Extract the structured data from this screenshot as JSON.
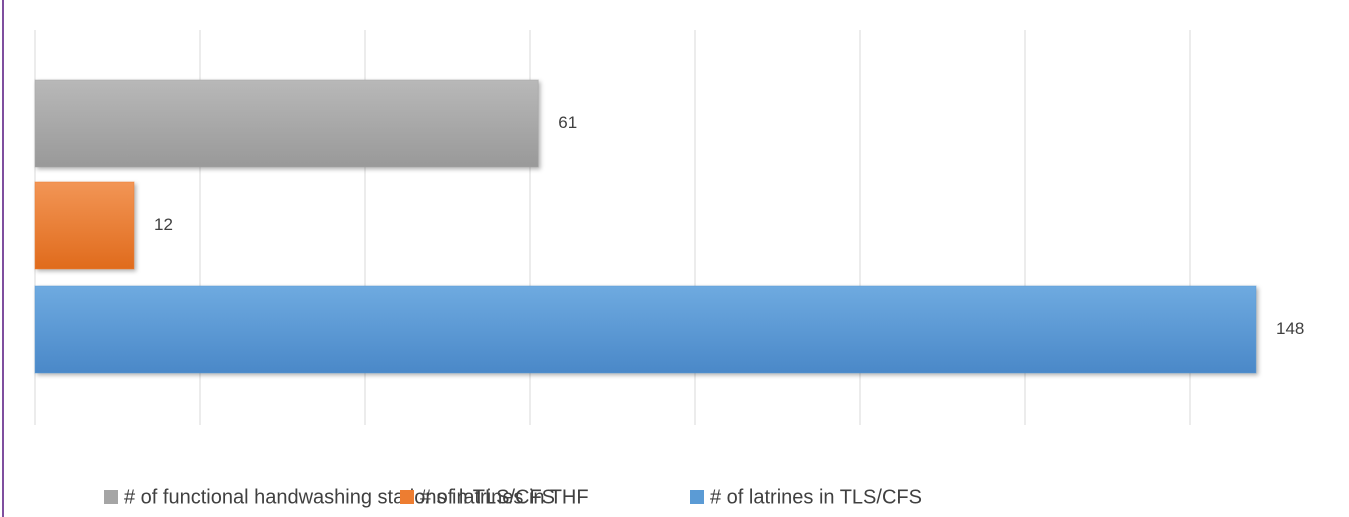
{
  "chart_data": {
    "type": "bar",
    "orientation": "horizontal",
    "categories": [
      null
    ],
    "series": [
      {
        "name": "# of functional handwashing stations in TLS/CFS",
        "color": "#a5a5a5",
        "values": [
          61
        ]
      },
      {
        "name": "# of latrines in THF",
        "color": "#ed7d31",
        "values": [
          12
        ]
      },
      {
        "name": "# of latrines in TLS/CFS",
        "color": "#5b9bd5",
        "values": [
          148
        ]
      }
    ],
    "xlim": [
      0,
      150
    ],
    "xticks": [
      0,
      20,
      40,
      60,
      80,
      100,
      120,
      140
    ],
    "grid": true,
    "legend": "bottom"
  }
}
